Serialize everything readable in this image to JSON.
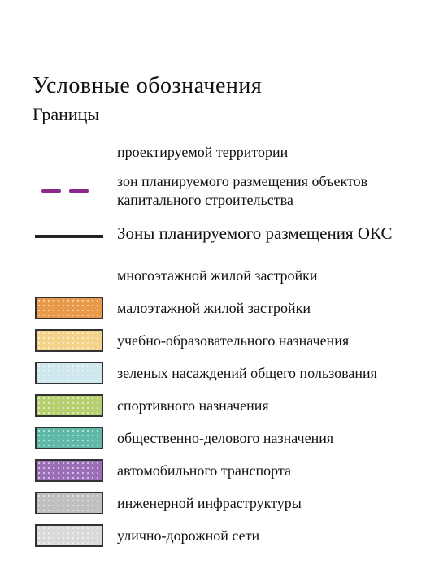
{
  "title": "Условные  обозначения",
  "boundaries": {
    "heading": "Границы",
    "items": [
      {
        "symbol": "none",
        "label": "проектируемой территории"
      },
      {
        "symbol": "dash",
        "color": "#8a2a8c",
        "label": "зон планируемого размещения объектов  капитального  строительства"
      },
      {
        "symbol": "solid",
        "color": "#222222",
        "label": "Зоны планируемого размещения ОКС",
        "overlay": true
      }
    ]
  },
  "zones": {
    "items": [
      {
        "symbol": "none",
        "label": "многоэтажной жилой застройки"
      },
      {
        "symbol": "swatch",
        "fill": "#e89a4a",
        "label": "малоэтажной жилой застройки"
      },
      {
        "symbol": "swatch",
        "fill": "#f3d38a",
        "label": "учебно-образовательного назначения"
      },
      {
        "symbol": "swatch",
        "fill": "#cfe8ef",
        "label": "зеленых насаждений общего пользования"
      },
      {
        "symbol": "swatch",
        "fill": "#b6cf6f",
        "label": "спортивного  назначения"
      },
      {
        "symbol": "swatch",
        "fill": "#5fb8a8",
        "label": "общественно-делового  назначения"
      },
      {
        "symbol": "swatch",
        "fill": "#9a6fb8",
        "label": "автомобильного транспорта"
      },
      {
        "symbol": "swatch",
        "fill": "#bfbfbf",
        "label": "инженерной инфраструктуры"
      },
      {
        "symbol": "swatch",
        "fill": "#d9d9d9",
        "label": "улично-дорожной сети"
      }
    ]
  },
  "style": {
    "label_fontsize": 18,
    "swatch_border": "#333333",
    "dash_segments": 2,
    "dash_width": 24,
    "dash_height": 6
  }
}
